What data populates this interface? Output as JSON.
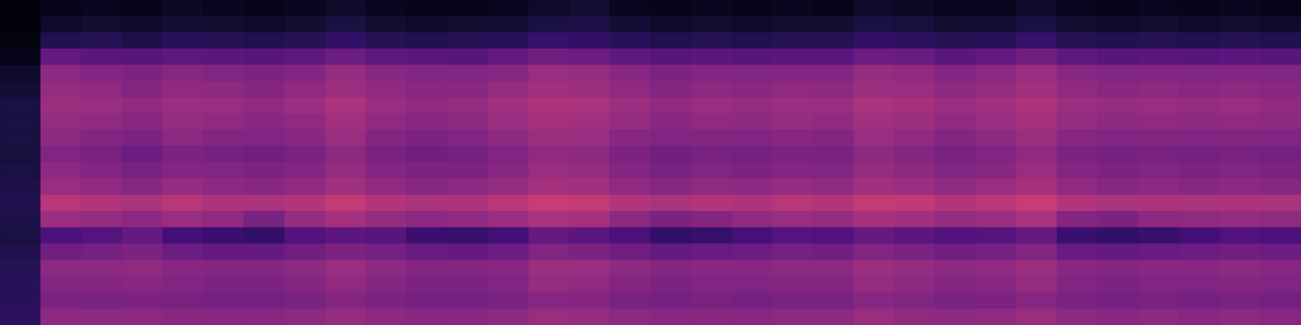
{
  "chart_data": {
    "type": "heatmap",
    "color": "magma",
    "tick_labels": false,
    "zlim": [
      0,
      100
    ],
    "cells": [
      [
        2,
        5,
        6,
        5,
        7,
        6,
        5,
        6,
        8,
        6,
        5,
        5,
        6,
        8,
        9,
        6,
        5,
        6,
        5,
        6,
        5,
        8,
        7,
        6,
        6,
        8,
        6,
        5,
        6,
        5,
        6,
        5
      ],
      [
        2,
        8,
        9,
        8,
        10,
        9,
        8,
        9,
        12,
        9,
        8,
        9,
        10,
        12,
        13,
        10,
        8,
        9,
        8,
        9,
        9,
        12,
        11,
        9,
        10,
        12,
        9,
        8,
        9,
        8,
        9,
        8
      ],
      [
        3,
        14,
        15,
        13,
        16,
        15,
        14,
        15,
        18,
        15,
        14,
        15,
        16,
        19,
        18,
        16,
        14,
        15,
        14,
        15,
        15,
        18,
        17,
        15,
        16,
        19,
        15,
        14,
        15,
        14,
        15,
        14
      ],
      [
        5,
        30,
        28,
        27,
        29,
        28,
        27,
        29,
        32,
        29,
        28,
        27,
        30,
        33,
        32,
        29,
        27,
        28,
        27,
        28,
        28,
        32,
        31,
        28,
        30,
        33,
        29,
        27,
        28,
        27,
        28,
        27
      ],
      [
        8,
        40,
        38,
        36,
        39,
        37,
        36,
        38,
        42,
        39,
        37,
        37,
        39,
        43,
        42,
        39,
        36,
        38,
        37,
        38,
        38,
        42,
        41,
        38,
        40,
        43,
        39,
        37,
        38,
        37,
        38,
        37
      ],
      [
        10,
        42,
        41,
        38,
        41,
        40,
        38,
        41,
        44,
        41,
        39,
        39,
        42,
        45,
        44,
        41,
        38,
        40,
        39,
        41,
        40,
        44,
        43,
        40,
        42,
        45,
        41,
        39,
        40,
        39,
        40,
        39
      ],
      [
        12,
        44,
        43,
        41,
        44,
        43,
        41,
        44,
        47,
        43,
        41,
        42,
        45,
        48,
        47,
        44,
        41,
        43,
        42,
        44,
        43,
        47,
        46,
        43,
        45,
        48,
        44,
        42,
        43,
        42,
        43,
        41
      ],
      [
        12,
        42,
        41,
        39,
        42,
        41,
        39,
        41,
        45,
        41,
        39,
        40,
        43,
        46,
        45,
        42,
        39,
        41,
        40,
        42,
        41,
        45,
        44,
        41,
        43,
        46,
        42,
        40,
        41,
        40,
        41,
        40
      ],
      [
        12,
        40,
        38,
        36,
        40,
        38,
        37,
        39,
        43,
        38,
        36,
        37,
        40,
        44,
        43,
        39,
        37,
        38,
        37,
        39,
        38,
        43,
        41,
        38,
        40,
        44,
        39,
        37,
        38,
        37,
        38,
        37
      ],
      [
        11,
        37,
        35,
        32,
        36,
        34,
        33,
        35,
        40,
        35,
        33,
        34,
        37,
        41,
        40,
        36,
        33,
        35,
        34,
        36,
        35,
        40,
        38,
        35,
        37,
        41,
        36,
        34,
        35,
        34,
        35,
        34
      ],
      [
        12,
        40,
        38,
        35,
        38,
        37,
        36,
        38,
        42,
        38,
        36,
        36,
        39,
        43,
        42,
        38,
        35,
        37,
        36,
        38,
        37,
        42,
        40,
        37,
        39,
        43,
        38,
        36,
        37,
        36,
        37,
        36
      ],
      [
        13,
        43,
        41,
        39,
        42,
        40,
        39,
        41,
        45,
        41,
        39,
        40,
        42,
        46,
        45,
        41,
        39,
        41,
        40,
        42,
        41,
        45,
        44,
        41,
        43,
        46,
        41,
        39,
        40,
        39,
        40,
        39
      ],
      [
        14,
        50,
        49,
        47,
        50,
        48,
        47,
        49,
        53,
        49,
        47,
        48,
        50,
        54,
        53,
        49,
        47,
        49,
        48,
        50,
        49,
        53,
        52,
        49,
        51,
        54,
        49,
        47,
        48,
        47,
        48,
        47
      ],
      [
        13,
        44,
        42,
        40,
        43,
        41,
        35,
        42,
        46,
        42,
        40,
        41,
        43,
        47,
        46,
        40,
        36,
        38,
        41,
        43,
        42,
        46,
        45,
        42,
        44,
        47,
        38,
        36,
        40,
        41,
        42,
        41
      ],
      [
        12,
        24,
        26,
        30,
        22,
        20,
        18,
        25,
        28,
        27,
        20,
        19,
        22,
        30,
        28,
        24,
        18,
        19,
        23,
        26,
        25,
        30,
        28,
        25,
        26,
        30,
        20,
        18,
        19,
        22,
        25,
        24
      ],
      [
        14,
        33,
        34,
        36,
        32,
        30,
        30,
        33,
        36,
        34,
        31,
        30,
        32,
        37,
        36,
        33,
        30,
        31,
        32,
        34,
        33,
        37,
        35,
        33,
        34,
        37,
        31,
        30,
        31,
        32,
        33,
        32
      ],
      [
        15,
        40,
        40,
        41,
        39,
        38,
        38,
        40,
        43,
        40,
        38,
        38,
        39,
        44,
        43,
        40,
        38,
        39,
        39,
        40,
        40,
        44,
        42,
        40,
        41,
        44,
        39,
        38,
        39,
        39,
        40,
        39
      ],
      [
        16,
        38,
        38,
        39,
        37,
        36,
        36,
        38,
        41,
        38,
        36,
        36,
        37,
        42,
        41,
        38,
        36,
        37,
        37,
        38,
        38,
        42,
        40,
        38,
        39,
        42,
        37,
        36,
        37,
        37,
        38,
        37
      ],
      [
        16,
        36,
        35,
        36,
        35,
        34,
        34,
        35,
        38,
        36,
        34,
        34,
        35,
        39,
        38,
        35,
        34,
        35,
        34,
        35,
        35,
        39,
        37,
        35,
        36,
        39,
        35,
        34,
        35,
        34,
        35,
        34
      ],
      [
        17,
        40,
        40,
        40,
        39,
        39,
        39,
        40,
        42,
        40,
        39,
        39,
        40,
        43,
        42,
        40,
        39,
        39,
        39,
        40,
        40,
        43,
        41,
        40,
        41,
        43,
        40,
        39,
        40,
        39,
        40,
        39
      ]
    ]
  }
}
